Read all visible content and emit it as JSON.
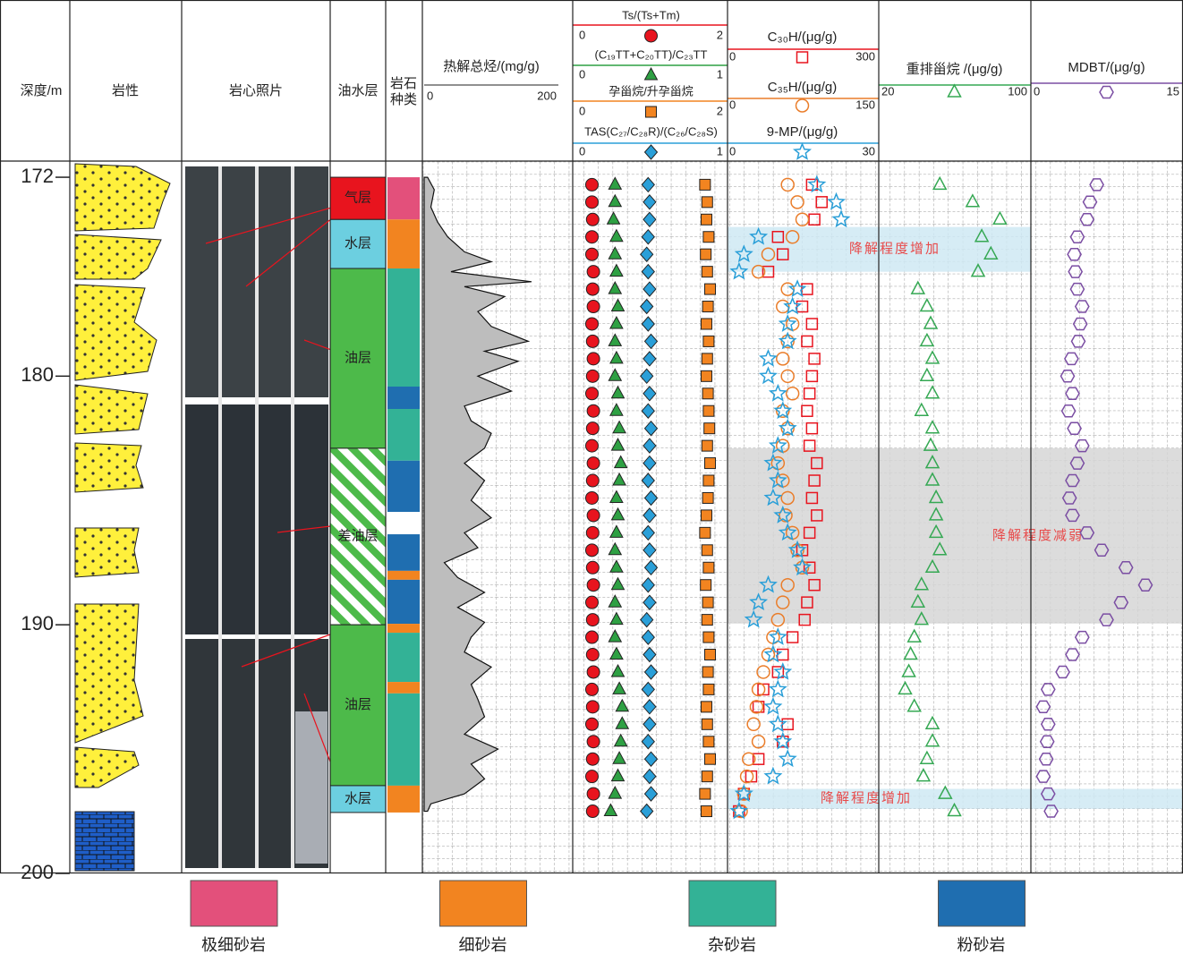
{
  "depth_axis": {
    "title": "深度/m",
    "ylim": [
      171.35,
      200
    ],
    "yticks": [
      172,
      180,
      190,
      200
    ]
  },
  "columns": {
    "lithology": "岩性",
    "core": "岩心照片",
    "oil_water": "油水层",
    "rock_type": "岩石种类"
  },
  "zones": [
    {
      "label": "气层",
      "top": 172,
      "bottom": 173.7,
      "color": "#e8141e",
      "pattern": "solid"
    },
    {
      "label": "水层",
      "top": 173.7,
      "bottom": 175.67,
      "color": "#6ccfe0",
      "pattern": "solid"
    },
    {
      "label": "油层",
      "top": 175.67,
      "bottom": 182.9,
      "color": "#4dba4a",
      "pattern": "solid"
    },
    {
      "label": "差油层",
      "top": 182.9,
      "bottom": 190,
      "color": "#4dba4a",
      "pattern": "hatch"
    },
    {
      "label": "油层",
      "top": 190,
      "bottom": 196.47,
      "color": "#4dba4a",
      "pattern": "solid"
    },
    {
      "label": "水层",
      "top": 196.47,
      "bottom": 197.55,
      "color": "#6ccfe0",
      "pattern": "solid"
    }
  ],
  "rock_types": [
    {
      "name": "极细砂岩",
      "color": "#e3507b"
    },
    {
      "name": "细砂岩",
      "color": "#f28420"
    },
    {
      "name": "杂砂岩",
      "color": "#33b296"
    },
    {
      "name": "粉砂岩",
      "color": "#1f6eb0"
    }
  ],
  "rock_layers": [
    {
      "top": 172,
      "bottom": 173.7,
      "rock": "极细砂岩"
    },
    {
      "top": 173.7,
      "bottom": 175.67,
      "rock": "细砂岩"
    },
    {
      "top": 175.67,
      "bottom": 180.42,
      "rock": "杂砂岩"
    },
    {
      "top": 180.42,
      "bottom": 181.32,
      "rock": "粉砂岩"
    },
    {
      "top": 181.32,
      "bottom": 183.4,
      "rock": "杂砂岩"
    },
    {
      "top": 183.4,
      "bottom": 185.46,
      "rock": "粉砂岩"
    },
    {
      "top": 185.46,
      "bottom": 186.36,
      "rock": null
    },
    {
      "top": 186.36,
      "bottom": 187.83,
      "rock": "粉砂岩"
    },
    {
      "top": 187.83,
      "bottom": 188.19,
      "rock": "细砂岩"
    },
    {
      "top": 188.19,
      "bottom": 189.96,
      "rock": "粉砂岩"
    },
    {
      "top": 189.96,
      "bottom": 190.32,
      "rock": "细砂岩"
    },
    {
      "top": 190.32,
      "bottom": 192.3,
      "rock": "杂砂岩"
    },
    {
      "top": 192.3,
      "bottom": 192.76,
      "rock": "细砂岩"
    },
    {
      "top": 192.76,
      "bottom": 196.47,
      "rock": "杂砂岩"
    },
    {
      "top": 196.47,
      "bottom": 197.55,
      "rock": "细砂岩"
    }
  ],
  "annotations": [
    {
      "text": "降解程度增加",
      "top": 174.0,
      "bottom": 175.8,
      "color": "#cfe9f3"
    },
    {
      "text": "降解程度减弱",
      "top": 182.9,
      "bottom": 189.95,
      "color": "#d6d6d6"
    },
    {
      "text": "降解程度增加",
      "top": 196.6,
      "bottom": 197.4,
      "color": "#cfe9f3"
    }
  ],
  "chart_data": [
    {
      "type": "area",
      "title": "热解总烃/(mg/g)",
      "xlim": [
        0,
        200
      ],
      "color": "#bdbdbd",
      "depths": [
        172.0,
        172.5,
        173.2,
        173.8,
        174.4,
        175.0,
        175.4,
        175.8,
        176.2,
        176.4,
        176.8,
        177.4,
        178.0,
        178.6,
        179.0,
        179.4,
        180.0,
        180.6,
        181.2,
        181.8,
        182.3,
        182.9,
        183.5,
        184.2,
        185.0,
        185.7,
        186.3,
        186.9,
        187.5,
        188.1,
        188.7,
        189.3,
        189.9,
        190.5,
        191.1,
        191.7,
        192.4,
        193.0,
        193.7,
        194.4,
        195.0,
        195.6,
        196.2,
        196.8,
        197.2,
        197.5
      ],
      "values": [
        5,
        15,
        10,
        20,
        35,
        60,
        100,
        40,
        160,
        60,
        120,
        80,
        100,
        155,
        90,
        140,
        80,
        130,
        60,
        70,
        100,
        90,
        60,
        90,
        70,
        100,
        60,
        80,
        30,
        50,
        90,
        50,
        90,
        70,
        60,
        100,
        70,
        80,
        90,
        60,
        110,
        70,
        90,
        60,
        10,
        5
      ]
    },
    {
      "type": "scatter",
      "depths": [
        172.3,
        173.0,
        173.7,
        174.4,
        175.1,
        175.8,
        176.5,
        177.2,
        177.9,
        178.6,
        179.3,
        180.0,
        180.7,
        181.4,
        182.1,
        182.8,
        183.5,
        184.2,
        184.9,
        185.6,
        186.3,
        187.0,
        187.7,
        188.4,
        189.1,
        189.8,
        190.5,
        191.2,
        191.9,
        192.6,
        193.3,
        194.0,
        194.7,
        195.4,
        196.1,
        196.8,
        197.5
      ],
      "series": [
        {
          "name": "Ts/(Ts+Tm)",
          "color": "#e8141e",
          "marker": "circle",
          "hollow": false,
          "xlim": [
            0,
            2
          ],
          "values": [
            0.18,
            0.18,
            0.19,
            0.18,
            0.18,
            0.2,
            0.19,
            0.2,
            0.18,
            0.19,
            0.2,
            0.19,
            0.18,
            0.2,
            0.19,
            0.18,
            0.2,
            0.19,
            0.18,
            0.2,
            0.19,
            0.18,
            0.19,
            0.2,
            0.18,
            0.19,
            0.18,
            0.19,
            0.2,
            0.18,
            0.19,
            0.18,
            0.2,
            0.19,
            0.18,
            0.2,
            0.19
          ]
        },
        {
          "name": "(C₁₉TT+C₂₀TT)/C₂₃TT",
          "color": "#2ea043",
          "marker": "triangle",
          "hollow": false,
          "xlim": [
            0,
            1
          ],
          "values": [
            0.25,
            0.25,
            0.24,
            0.26,
            0.25,
            0.26,
            0.25,
            0.27,
            0.26,
            0.25,
            0.26,
            0.25,
            0.27,
            0.26,
            0.28,
            0.27,
            0.29,
            0.28,
            0.26,
            0.27,
            0.26,
            0.25,
            0.26,
            0.27,
            0.25,
            0.26,
            0.25,
            0.26,
            0.27,
            0.28,
            0.3,
            0.3,
            0.29,
            0.28,
            0.27,
            0.25,
            0.22
          ]
        },
        {
          "name": "孕甾烷/升孕甾烷",
          "color": "#f28420",
          "marker": "square",
          "hollow": false,
          "xlim": [
            0,
            2
          ],
          "values": [
            1.75,
            1.78,
            1.77,
            1.8,
            1.76,
            1.78,
            1.82,
            1.79,
            1.77,
            1.8,
            1.78,
            1.77,
            1.79,
            1.8,
            1.81,
            1.78,
            1.82,
            1.8,
            1.79,
            1.77,
            1.75,
            1.78,
            1.8,
            1.76,
            1.79,
            1.78,
            1.8,
            1.82,
            1.79,
            1.8,
            1.77,
            1.78,
            1.8,
            1.82,
            1.78,
            1.75,
            1.77
          ]
        },
        {
          "name": "TAS(C₂₇/C₂₈R)/(C₂₆/C₂₈S)",
          "color": "#2a9fd8",
          "marker": "diamond",
          "hollow": false,
          "xlim": [
            0,
            1
          ],
          "values": [
            0.48,
            0.49,
            0.49,
            0.48,
            0.47,
            0.48,
            0.49,
            0.47,
            0.48,
            0.5,
            0.49,
            0.47,
            0.49,
            0.48,
            0.5,
            0.49,
            0.49,
            0.48,
            0.5,
            0.49,
            0.48,
            0.49,
            0.5,
            0.48,
            0.49,
            0.47,
            0.48,
            0.49,
            0.5,
            0.48,
            0.49,
            0.49,
            0.48,
            0.5,
            0.49,
            0.5,
            0.47
          ]
        }
      ]
    },
    {
      "type": "scatter",
      "depths": [
        172.3,
        173.0,
        173.7,
        174.4,
        175.1,
        175.8,
        176.5,
        177.2,
        177.9,
        178.6,
        179.3,
        180.0,
        180.7,
        181.4,
        182.1,
        182.8,
        183.5,
        184.2,
        184.9,
        185.6,
        186.3,
        187.0,
        187.7,
        188.4,
        189.1,
        189.8,
        190.5,
        191.2,
        191.9,
        192.6,
        193.3,
        194.0,
        194.7,
        195.4,
        196.1,
        196.8,
        197.5
      ],
      "series": [
        {
          "name": "C₃₀H/(μg/g)",
          "color": "#e8141e",
          "marker": "square",
          "hollow": true,
          "xlim": [
            0,
            300
          ],
          "values": [
            170,
            190,
            175,
            100,
            110,
            80,
            160,
            150,
            170,
            160,
            175,
            170,
            165,
            160,
            170,
            165,
            180,
            175,
            170,
            180,
            165,
            150,
            165,
            175,
            160,
            155,
            130,
            110,
            100,
            70,
            60,
            120,
            110,
            60,
            45,
            30,
            20
          ]
        },
        {
          "name": "C₃₅H/(μg/g)",
          "color": "#ea7d2a",
          "marker": "circle",
          "hollow": true,
          "xlim": [
            0,
            150
          ],
          "values": [
            60,
            70,
            75,
            65,
            40,
            30,
            60,
            55,
            65,
            60,
            55,
            60,
            65,
            55,
            60,
            55,
            50,
            55,
            60,
            58,
            65,
            70,
            75,
            60,
            55,
            50,
            45,
            40,
            35,
            30,
            28,
            25,
            30,
            20,
            18,
            15,
            12
          ]
        },
        {
          "name": "9-MP/(μg/g)",
          "color": "#2a9fd8",
          "marker": "star",
          "hollow": true,
          "xlim": [
            0,
            30
          ],
          "values": [
            18,
            22,
            23,
            6,
            3,
            2,
            14,
            13,
            12,
            12,
            8,
            8,
            10,
            11,
            12,
            10,
            9,
            10,
            9,
            11,
            12,
            14,
            15,
            8,
            6,
            5,
            10,
            9,
            11,
            10,
            9,
            10,
            11,
            12,
            9,
            3,
            2
          ]
        }
      ]
    },
    {
      "type": "scatter",
      "depths": [
        172.3,
        173.0,
        173.7,
        174.4,
        175.1,
        175.8,
        176.5,
        177.2,
        177.9,
        178.6,
        179.3,
        180.0,
        180.7,
        181.4,
        182.1,
        182.8,
        183.5,
        184.2,
        184.9,
        185.6,
        186.3,
        187.0,
        187.7,
        188.4,
        189.1,
        189.8,
        190.5,
        191.2,
        191.9,
        192.6,
        193.3,
        194.0,
        194.7,
        195.4,
        196.1,
        196.8,
        197.5
      ],
      "series": [
        {
          "name": "重排甾烷 /(μg/g)",
          "color": "#35a853",
          "marker": "triangle",
          "hollow": true,
          "xlim": [
            20,
            100
          ],
          "values": [
            52,
            70,
            85,
            75,
            80,
            73,
            40,
            45,
            47,
            45,
            48,
            45,
            48,
            42,
            48,
            47,
            48,
            48,
            50,
            50,
            50,
            52,
            48,
            42,
            40,
            42,
            38,
            36,
            35,
            33,
            38,
            48,
            48,
            45,
            43,
            55,
            60
          ]
        }
      ]
    },
    {
      "type": "scatter",
      "depths": [
        172.3,
        173.0,
        173.7,
        174.4,
        175.1,
        175.8,
        176.5,
        177.2,
        177.9,
        178.6,
        179.3,
        180.0,
        180.7,
        181.4,
        182.1,
        182.8,
        183.5,
        184.2,
        184.9,
        185.6,
        186.3,
        187.0,
        187.7,
        188.4,
        189.1,
        189.8,
        190.5,
        191.2,
        191.9,
        192.6,
        193.3,
        194.0,
        194.7,
        195.4,
        196.1,
        196.8,
        197.5
      ],
      "series": [
        {
          "name": "MDBT/(μg/g)",
          "color": "#7b4ea3",
          "marker": "hexagon",
          "hollow": true,
          "xlim": [
            0,
            15
          ],
          "values": [
            6.5,
            5.8,
            5.5,
            4.5,
            4.2,
            4.3,
            4.5,
            5,
            4.8,
            4.6,
            3.9,
            3.5,
            4,
            3.6,
            4.2,
            5,
            4.5,
            4,
            3.7,
            4,
            5.5,
            7,
            9.5,
            11.5,
            9,
            7.5,
            5,
            4,
            3,
            1.5,
            1,
            1.5,
            1.4,
            1.3,
            1,
            1.5,
            1.8
          ]
        }
      ]
    }
  ]
}
